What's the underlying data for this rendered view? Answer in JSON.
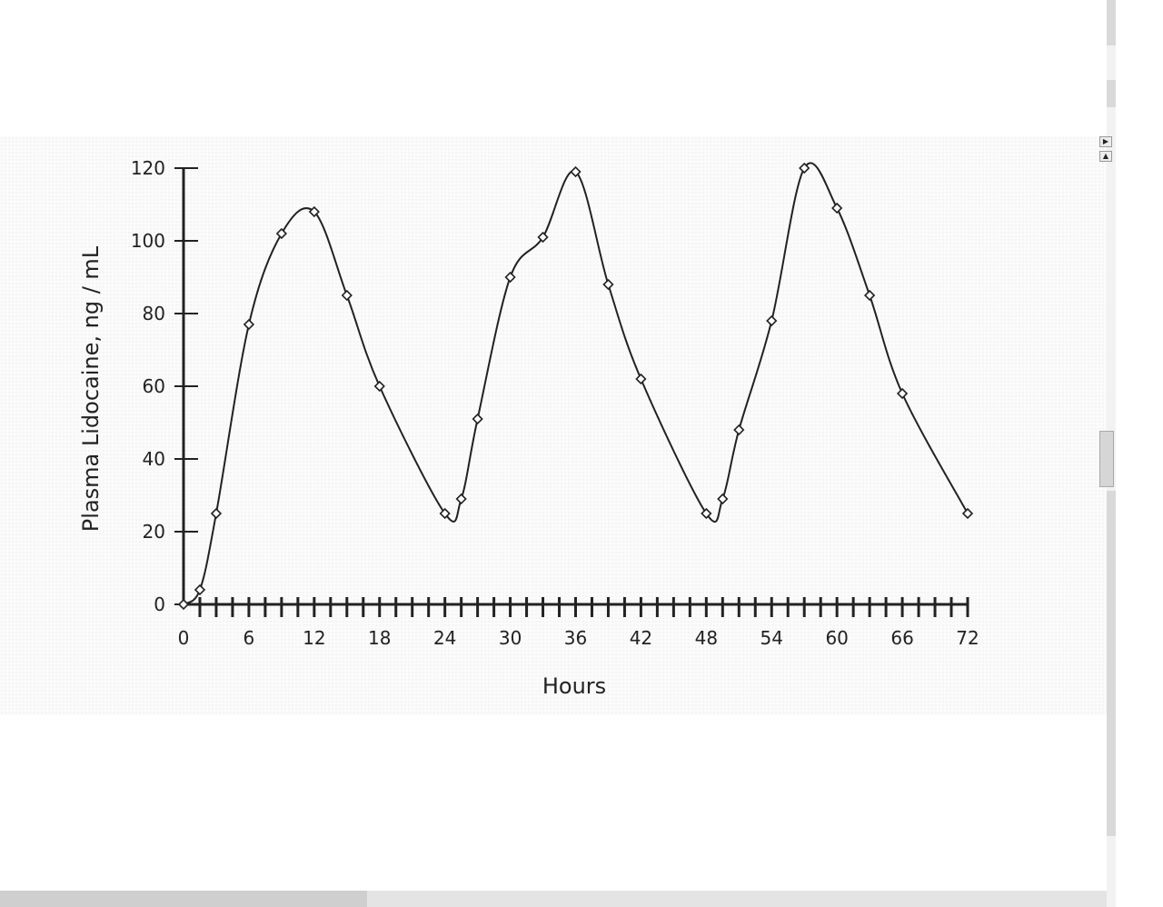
{
  "chart_data": {
    "type": "line",
    "title": "",
    "xlabel": "Hours",
    "ylabel": "Plasma Lidocaine, ng / mL",
    "xlim": [
      0,
      72
    ],
    "ylim": [
      0,
      120
    ],
    "x_ticks": [
      "0",
      "6",
      "12",
      "18",
      "24",
      "30",
      "36",
      "42",
      "48",
      "54",
      "60",
      "66",
      "72"
    ],
    "y_ticks": [
      "0",
      "20",
      "40",
      "60",
      "80",
      "100",
      "120"
    ],
    "x_minor_tick_step": 1.5,
    "grid": false,
    "legend": "none",
    "marker": "open-diamond",
    "line_color": "#222222",
    "series": [
      {
        "x": [
          0,
          1.5,
          3,
          6,
          9,
          12,
          15,
          18,
          24,
          25.5,
          27,
          30,
          33,
          36,
          39,
          42,
          48,
          49.5,
          51,
          54,
          57,
          60,
          63,
          66,
          72
        ],
        "y": [
          0,
          4,
          25,
          77,
          102,
          108,
          85,
          60,
          25,
          29,
          51,
          90,
          101,
          119,
          88,
          62,
          25,
          29,
          48,
          78,
          120,
          109,
          85,
          58,
          25
        ]
      }
    ]
  }
}
